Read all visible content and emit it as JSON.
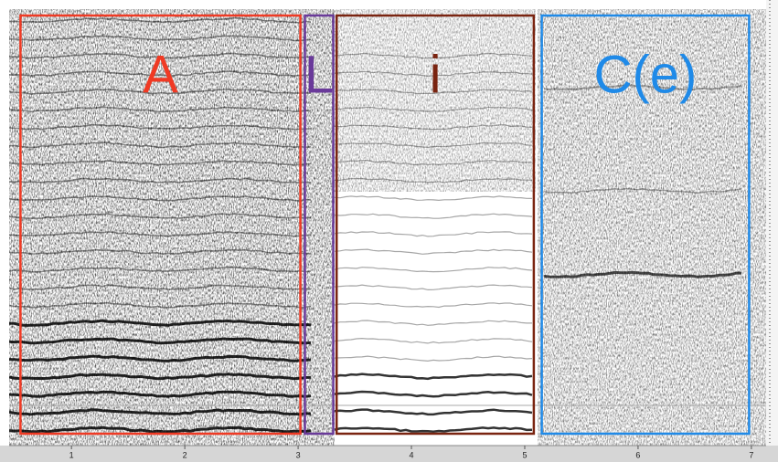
{
  "chart_data": {
    "type": "spectrogram",
    "xlim": [
      0.45,
      7.13
    ],
    "xticks": [
      1,
      2,
      3,
      4,
      5,
      6,
      7
    ],
    "regions": [
      {
        "label": "A",
        "color": "#f03a24",
        "start": 0.55,
        "end": 3.02
      },
      {
        "label": "L",
        "color": "#6a3a9a",
        "start": 3.06,
        "end": 3.31
      },
      {
        "label": "i",
        "color": "#7a2410",
        "start": 3.34,
        "end": 5.08
      },
      {
        "label": "C(e)",
        "color": "#1f8ae8",
        "start": 5.15,
        "end": 6.98
      }
    ]
  }
}
